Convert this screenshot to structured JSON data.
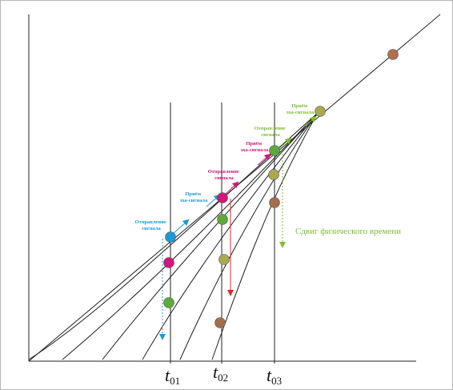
{
  "labels": {
    "send1": [
      "Отправление",
      "сигнала"
    ],
    "recv1": [
      "Приём",
      "эха-сигнала"
    ],
    "send2": [
      "Отправление",
      "сигнала"
    ],
    "recv2": [
      "Приём",
      "эха-сигнала"
    ],
    "send3": [
      "Отправление",
      "сигнала"
    ],
    "recv3": [
      "Приём",
      "эха-сигнала"
    ],
    "shift": "Сдвиг физического времени"
  },
  "ticks": [
    {
      "main": "t",
      "sub": "01"
    },
    {
      "main": "t",
      "sub": "02"
    },
    {
      "main": "t",
      "sub": "03"
    }
  ],
  "colors": {
    "blue": "#1a9ad6",
    "magenta": "#d4157a",
    "red": "#e3262a",
    "green": "#7dbf30",
    "dot_green": "#5daa3a",
    "dot_olive": "#a9a94f",
    "dot_brown": "#a46f4a",
    "dot_top": "#b07050"
  }
}
